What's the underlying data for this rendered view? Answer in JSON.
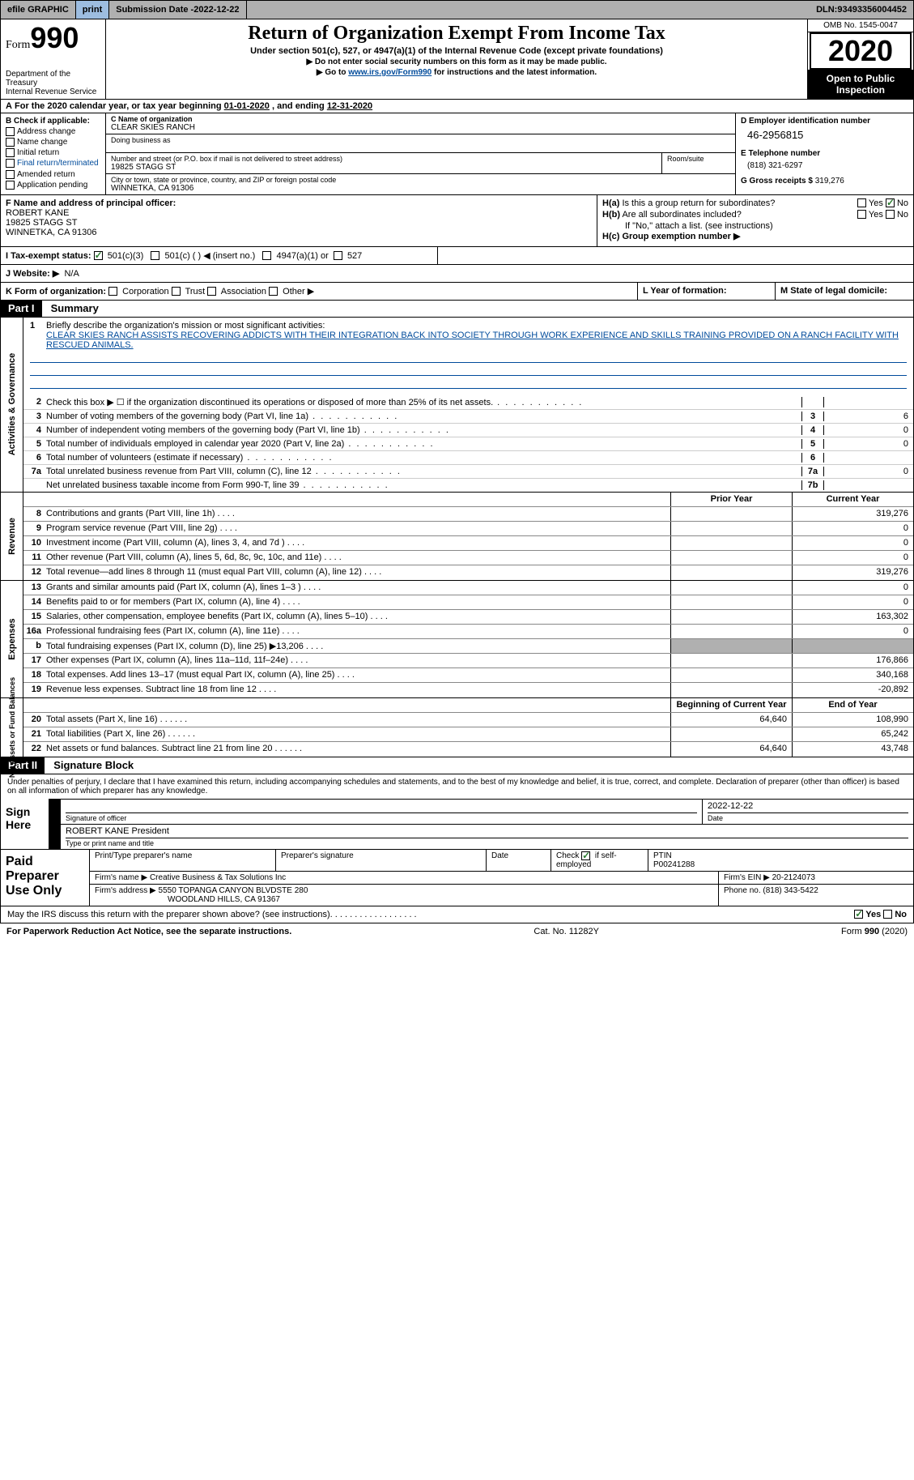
{
  "topbar": {
    "efile": "efile GRAPHIC",
    "print": "print",
    "subdate_label": "Submission Date - ",
    "subdate": "2022-12-22",
    "dln_label": "DLN: ",
    "dln": "93493356004452"
  },
  "header": {
    "form_word": "Form",
    "form_num": "990",
    "dept1": "Department of the Treasury",
    "dept2": "Internal Revenue Service",
    "title": "Return of Organization Exempt From Income Tax",
    "subtitle": "Under section 501(c), 527, or 4947(a)(1) of the Internal Revenue Code (except private foundations)",
    "line1": "▶ Do not enter social security numbers on this form as it may be made public.",
    "line2a": "▶ Go to ",
    "line2_link": "www.irs.gov/Form990",
    "line2b": " for instructions and the latest information.",
    "omb": "OMB No. 1545-0047",
    "year": "2020",
    "open1": "Open to Public",
    "open2": "Inspection"
  },
  "a_row": {
    "text_a": "A",
    "text_body": "For the 2020 calendar year, or tax year beginning ",
    "begin": "01-01-2020",
    "mid": " , and ending ",
    "end": "12-31-2020"
  },
  "b": {
    "label": "B Check if applicable:",
    "items": [
      "Address change",
      "Name change",
      "Initial return",
      "Final return/terminated",
      "Amended return",
      "Application pending"
    ]
  },
  "c": {
    "label": "C Name of organization",
    "org": "CLEAR SKIES RANCH",
    "dba_label": "Doing business as",
    "addr_label": "Number and street (or P.O. box if mail is not delivered to street address)",
    "room_label": "Room/suite",
    "addr": "19825 STAGG ST",
    "city_label": "City or town, state or province, country, and ZIP or foreign postal code",
    "city": "WINNETKA, CA  91306"
  },
  "d": {
    "label": "D Employer identification number",
    "val": "46-2956815"
  },
  "e": {
    "label": "E Telephone number",
    "val": "(818) 321-6297"
  },
  "g": {
    "label": "G Gross receipts $ ",
    "val": "319,276"
  },
  "f": {
    "label": "F Name and address of principal officer:",
    "name": "ROBERT KANE",
    "addr1": "19825 STAGG ST",
    "addr2": "WINNETKA, CA  91306"
  },
  "h": {
    "a_label": "H(a) Is this a group return for subordinates?",
    "a_yes": "Yes",
    "a_no": "No",
    "b_label": "H(b) Are all subordinates included?",
    "b_note": "If \"No,\" attach a list. (see instructions)",
    "c_label": "H(c) Group exemption number ▶"
  },
  "i": {
    "label": "I   Tax-exempt status:",
    "opt1": "501(c)(3)",
    "opt2": "501(c) (   ) ◀ (insert no.)",
    "opt3": "4947(a)(1) or",
    "opt4": "527"
  },
  "j": {
    "label": "J   Website: ▶",
    "val": "N/A"
  },
  "k": {
    "label": "K Form of organization:",
    "opts": [
      "Corporation",
      "Trust",
      "Association",
      "Other ▶"
    ]
  },
  "l": {
    "label": "L Year of formation:"
  },
  "m": {
    "label": "M State of legal domicile:"
  },
  "part1": {
    "tag": "Part I",
    "title": "Summary"
  },
  "mission": {
    "q": "Briefly describe the organization's mission or most significant activities:",
    "text": "CLEAR SKIES RANCH ASSISTS RECOVERING ADDICTS WITH THEIR INTEGRATION BACK INTO SOCIETY THROUGH WORK EXPERIENCE AND SKILLS TRAINING PROVIDED ON A RANCH FACILITY WITH RESCUED ANIMALS."
  },
  "side_labels": {
    "ag": "Activities & Governance",
    "rev": "Revenue",
    "exp": "Expenses",
    "net": "Net Assets or Fund Balances"
  },
  "gov_rows": [
    {
      "n": "2",
      "desc": "Check this box ▶ ☐ if the organization discontinued its operations or disposed of more than 25% of its net assets.",
      "box": "",
      "val": ""
    },
    {
      "n": "3",
      "desc": "Number of voting members of the governing body (Part VI, line 1a)",
      "box": "3",
      "val": "6"
    },
    {
      "n": "4",
      "desc": "Number of independent voting members of the governing body (Part VI, line 1b)",
      "box": "4",
      "val": "0"
    },
    {
      "n": "5",
      "desc": "Total number of individuals employed in calendar year 2020 (Part V, line 2a)",
      "box": "5",
      "val": "0"
    },
    {
      "n": "6",
      "desc": "Total number of volunteers (estimate if necessary)",
      "box": "6",
      "val": ""
    },
    {
      "n": "7a",
      "desc": "Total unrelated business revenue from Part VIII, column (C), line 12",
      "box": "7a",
      "val": "0"
    },
    {
      "n": "",
      "desc": "Net unrelated business taxable income from Form 990-T, line 39",
      "box": "7b",
      "val": ""
    }
  ],
  "fin_hdr": {
    "prior": "Prior Year",
    "curr": "Current Year"
  },
  "rev_rows": [
    {
      "n": "8",
      "desc": "Contributions and grants (Part VIII, line 1h)",
      "p": "",
      "c": "319,276"
    },
    {
      "n": "9",
      "desc": "Program service revenue (Part VIII, line 2g)",
      "p": "",
      "c": "0"
    },
    {
      "n": "10",
      "desc": "Investment income (Part VIII, column (A), lines 3, 4, and 7d )",
      "p": "",
      "c": "0"
    },
    {
      "n": "11",
      "desc": "Other revenue (Part VIII, column (A), lines 5, 6d, 8c, 9c, 10c, and 11e)",
      "p": "",
      "c": "0"
    },
    {
      "n": "12",
      "desc": "Total revenue—add lines 8 through 11 (must equal Part VIII, column (A), line 12)",
      "p": "",
      "c": "319,276"
    }
  ],
  "exp_rows": [
    {
      "n": "13",
      "desc": "Grants and similar amounts paid (Part IX, column (A), lines 1–3 )",
      "p": "",
      "c": "0"
    },
    {
      "n": "14",
      "desc": "Benefits paid to or for members (Part IX, column (A), line 4)",
      "p": "",
      "c": "0"
    },
    {
      "n": "15",
      "desc": "Salaries, other compensation, employee benefits (Part IX, column (A), lines 5–10)",
      "p": "",
      "c": "163,302"
    },
    {
      "n": "16a",
      "desc": "Professional fundraising fees (Part IX, column (A), line 11e)",
      "p": "",
      "c": "0"
    },
    {
      "n": "b",
      "desc": "Total fundraising expenses (Part IX, column (D), line 25) ▶13,206",
      "p": "grey",
      "c": "grey"
    },
    {
      "n": "17",
      "desc": "Other expenses (Part IX, column (A), lines 11a–11d, 11f–24e)",
      "p": "",
      "c": "176,866"
    },
    {
      "n": "18",
      "desc": "Total expenses. Add lines 13–17 (must equal Part IX, column (A), line 25)",
      "p": "",
      "c": "340,168"
    },
    {
      "n": "19",
      "desc": "Revenue less expenses. Subtract line 18 from line 12",
      "p": "",
      "c": "-20,892"
    }
  ],
  "net_hdr": {
    "b": "Beginning of Current Year",
    "e": "End of Year"
  },
  "net_rows": [
    {
      "n": "20",
      "desc": "Total assets (Part X, line 16)",
      "p": "64,640",
      "c": "108,990"
    },
    {
      "n": "21",
      "desc": "Total liabilities (Part X, line 26)",
      "p": "",
      "c": "65,242"
    },
    {
      "n": "22",
      "desc": "Net assets or fund balances. Subtract line 21 from line 20",
      "p": "64,640",
      "c": "43,748"
    }
  ],
  "part2": {
    "tag": "Part II",
    "title": "Signature Block"
  },
  "decl": "Under penalties of perjury, I declare that I have examined this return, including accompanying schedules and statements, and to the best of my knowledge and belief, it is true, correct, and complete. Declaration of preparer (other than officer) is based on all information of which preparer has any knowledge.",
  "sign": {
    "here": "Sign Here",
    "sig_label": "Signature of officer",
    "date_label": "Date",
    "date": "2022-12-22",
    "name": "ROBERT KANE President",
    "name_label": "Type or print name and title"
  },
  "prep": {
    "title": "Paid Preparer Use Only",
    "h1": "Print/Type preparer's name",
    "h2": "Preparer's signature",
    "h3": "Date",
    "h4a": "Check ☑ if self-employed",
    "h4b_label": "PTIN",
    "h4b": "P00241288",
    "firm_label": "Firm's name   ▶",
    "firm": "Creative Business & Tax Solutions Inc",
    "ein_label": "Firm's EIN ▶",
    "ein": "20-2124073",
    "addr_label": "Firm's address ▶",
    "addr1": "5550 TOPANGA CANYON BLVDSTE 280",
    "addr2": "WOODLAND HILLS, CA  91367",
    "phone_label": "Phone no. ",
    "phone": "(818) 343-5422"
  },
  "may": {
    "q": "May the IRS discuss this return with the preparer shown above? (see instructions)",
    "yes": "Yes",
    "no": "No"
  },
  "footer": {
    "left": "For Paperwork Reduction Act Notice, see the separate instructions.",
    "mid": "Cat. No. 11282Y",
    "right": "Form 990 (2020)"
  }
}
